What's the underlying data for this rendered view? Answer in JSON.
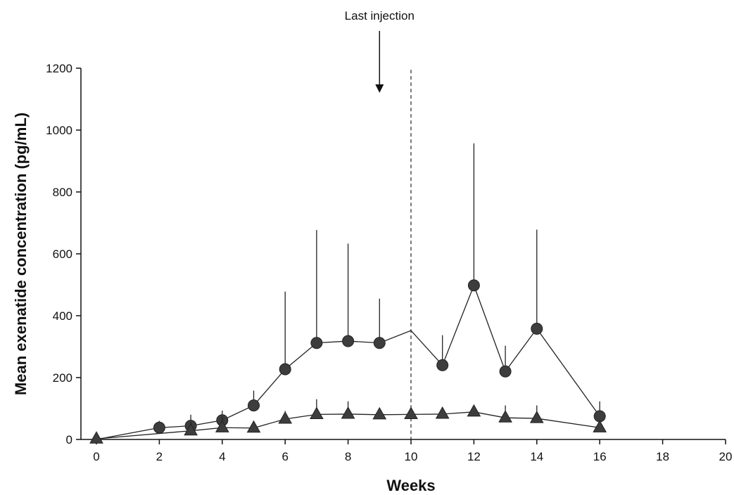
{
  "chart_data": {
    "type": "line",
    "title": "",
    "xlabel": "Weeks",
    "ylabel": "Mean exenatide concentration (pg/mL)",
    "xlim": [
      0,
      20
    ],
    "ylim": [
      0,
      1200
    ],
    "xticks": [
      0,
      2,
      4,
      6,
      8,
      10,
      12,
      14,
      16,
      18,
      20
    ],
    "yticks": [
      0,
      200,
      400,
      600,
      800,
      1000,
      1200
    ],
    "grid": false,
    "legend": "none",
    "series": [
      {
        "marker": "circle",
        "color": "#3d3d3d",
        "points": [
          {
            "x": 0,
            "y": 0,
            "marker": false,
            "err": null
          },
          {
            "x": 2,
            "y": 38,
            "marker": true,
            "err": 60
          },
          {
            "x": 3,
            "y": 44,
            "marker": true,
            "err": 80
          },
          {
            "x": 4,
            "y": 62,
            "marker": true,
            "err": 93
          },
          {
            "x": 5,
            "y": 110,
            "marker": true,
            "err": 158
          },
          {
            "x": 6,
            "y": 227,
            "marker": true,
            "err": 478
          },
          {
            "x": 7,
            "y": 312,
            "marker": true,
            "err": 677
          },
          {
            "x": 8,
            "y": 318,
            "marker": true,
            "err": 633
          },
          {
            "x": 9,
            "y": 312,
            "marker": true,
            "err": 455
          },
          {
            "x": 10,
            "y": 352,
            "marker": false,
            "err": null
          },
          {
            "x": 11,
            "y": 240,
            "marker": true,
            "err": 337
          },
          {
            "x": 12,
            "y": 498,
            "marker": true,
            "err": 957
          },
          {
            "x": 13,
            "y": 220,
            "marker": true,
            "err": 303
          },
          {
            "x": 14,
            "y": 358,
            "marker": true,
            "err": 678
          },
          {
            "x": 16,
            "y": 75,
            "marker": true,
            "err": 123
          }
        ]
      },
      {
        "marker": "triangle",
        "color": "#3d3d3d",
        "points": [
          {
            "x": 0,
            "y": 2,
            "marker": true,
            "err": null
          },
          {
            "x": 3,
            "y": 28,
            "marker": true,
            "err": 57
          },
          {
            "x": 4,
            "y": 38,
            "marker": true,
            "err": 75
          },
          {
            "x": 5,
            "y": 37,
            "marker": true,
            "err": null
          },
          {
            "x": 6,
            "y": 66,
            "marker": true,
            "err": 92
          },
          {
            "x": 7,
            "y": 81,
            "marker": true,
            "err": 130
          },
          {
            "x": 8,
            "y": 82,
            "marker": true,
            "err": 123
          },
          {
            "x": 9,
            "y": 80,
            "marker": true,
            "err": null
          },
          {
            "x": 10,
            "y": 81,
            "marker": true,
            "err": null
          },
          {
            "x": 11,
            "y": 82,
            "marker": true,
            "err": null
          },
          {
            "x": 12,
            "y": 89,
            "marker": true,
            "err": null
          },
          {
            "x": 13,
            "y": 70,
            "marker": true,
            "err": 110
          },
          {
            "x": 14,
            "y": 68,
            "marker": true,
            "err": 110
          },
          {
            "x": 16,
            "y": 38,
            "marker": true,
            "err": 60
          }
        ]
      }
    ],
    "reference_line": {
      "x": 10,
      "style": "dashed"
    },
    "annotation": {
      "text": "Last injection",
      "x": 9
    }
  }
}
